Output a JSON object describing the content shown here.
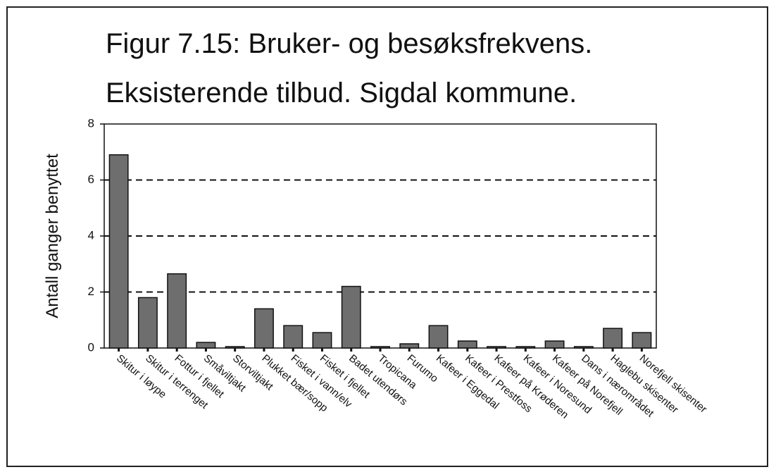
{
  "chart_data": {
    "type": "bar",
    "title": "Figur 7.15: Bruker- og besøksfrekvens.",
    "subtitle": "Eksisterende tilbud. Sigdal kommune.",
    "y_label": "Antall ganger benyttet",
    "categories": [
      "Skitur i løype",
      "Skitur i terrenget",
      "Fottur i fjellet",
      "Småviltjakt",
      "Storviltjakt",
      "Plukket bær/sopp",
      "Fisket i vann/elv",
      "Fisket i fjellet",
      "Badet utendørs",
      "Tropicana",
      "Furumo",
      "Kafeer i Eggedal",
      "Kafeer i Prestfoss",
      "Kafeer på Krøderen",
      "Kafeer i Noresund",
      "Kafeer på Norefjell",
      "Dans i nærområdet",
      "Haglebu skisenter",
      "Norefjell skisenter"
    ],
    "values": [
      6.9,
      1.8,
      2.65,
      0.2,
      0.05,
      1.4,
      0.8,
      0.55,
      2.2,
      0.05,
      0.15,
      0.8,
      0.25,
      0.05,
      0.05,
      0.25,
      0.05,
      0.7,
      0.55
    ],
    "color": "#6e6e6e",
    "ylim": [
      0,
      8
    ],
    "yticks": [
      0,
      2,
      4,
      6,
      8
    ],
    "grid": true
  }
}
